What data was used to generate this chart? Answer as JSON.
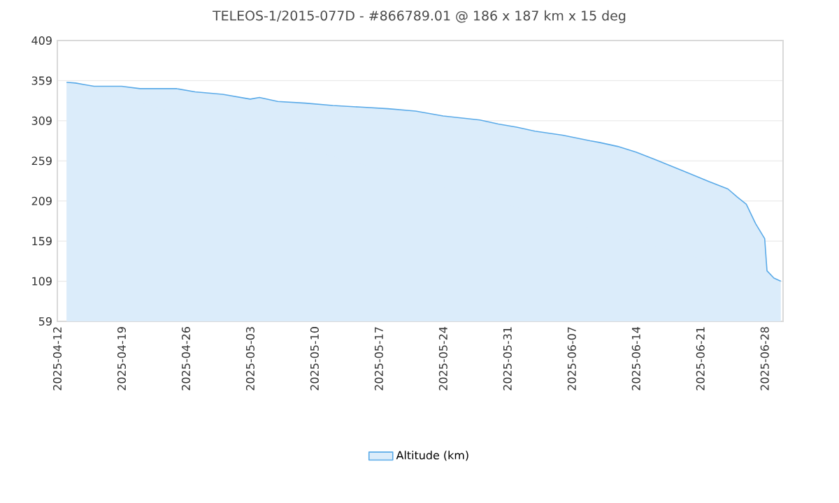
{
  "chart_data": {
    "type": "area",
    "title": "TELEOS-1/2015-077D - #866789.01 @ 186 x 187 km x 15 deg",
    "x": [
      "2025-04-13",
      "2025-04-14",
      "2025-04-15",
      "2025-04-16",
      "2025-04-19",
      "2025-04-21",
      "2025-04-25",
      "2025-04-27",
      "2025-04-30",
      "2025-05-03",
      "2025-05-04",
      "2025-05-06",
      "2025-05-09",
      "2025-05-12",
      "2025-05-15",
      "2025-05-18",
      "2025-05-21",
      "2025-05-24",
      "2025-05-28",
      "2025-05-30",
      "2025-06-01",
      "2025-06-03",
      "2025-06-06",
      "2025-06-09",
      "2025-06-10",
      "2025-06-12",
      "2025-06-14",
      "2025-06-16",
      "2025-06-19",
      "2025-06-22",
      "2025-06-24",
      "2025-06-25",
      "2025-06-26",
      "2025-06-27",
      "2025-06-28",
      "2025-06-28T06:00",
      "2025-06-29",
      "2025-06-29T18:00"
    ],
    "series": [
      {
        "name": "Altitude (km)",
        "color": "#5aaae8",
        "values": [
          357,
          356,
          354,
          352,
          352,
          349,
          349,
          345,
          342,
          336,
          338,
          333,
          331,
          328,
          326,
          324,
          321,
          315,
          310,
          305,
          301,
          296,
          291,
          284,
          282,
          277,
          270,
          261,
          247,
          233,
          224,
          214,
          205,
          181,
          162,
          122,
          113,
          109
        ]
      }
    ],
    "xlim": [
      "2025-04-12",
      "2025-06-30"
    ],
    "xticks": [
      "2025-04-12",
      "2025-04-19",
      "2025-04-26",
      "2025-05-03",
      "2025-05-10",
      "2025-05-17",
      "2025-05-24",
      "2025-05-31",
      "2025-06-07",
      "2025-06-14",
      "2025-06-21",
      "2025-06-28"
    ],
    "ylim": [
      59,
      409
    ],
    "yticks": [
      59,
      109,
      159,
      209,
      259,
      309,
      359,
      409
    ],
    "grid": "y",
    "legend": "bottom"
  }
}
